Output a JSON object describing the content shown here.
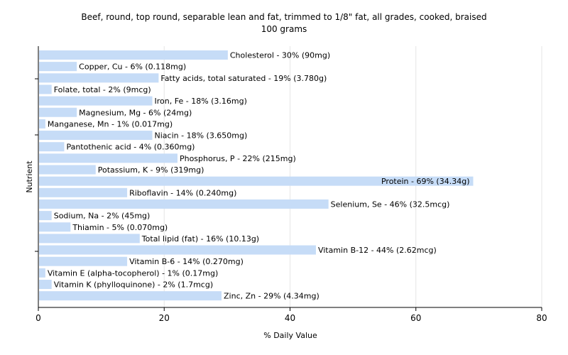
{
  "chart_data": {
    "type": "bar",
    "orientation": "horizontal",
    "title": "Beef, round, top round, separable lean and fat, trimmed to 1/8\" fat, all grades, cooked, braised",
    "subtitle": "100 grams",
    "xlabel": "% Daily Value",
    "ylabel": "Nutrient",
    "xlim": [
      0,
      80
    ],
    "xticks": [
      0,
      20,
      40,
      60,
      80
    ],
    "grid": true,
    "bar_color": "#c6dcf7",
    "categories": [
      "Cholesterol",
      "Copper, Cu",
      "Fatty acids, total saturated",
      "Folate, total",
      "Iron, Fe",
      "Magnesium, Mg",
      "Manganese, Mn",
      "Niacin",
      "Pantothenic acid",
      "Phosphorus, P",
      "Potassium, K",
      "Protein",
      "Riboflavin",
      "Selenium, Se",
      "Sodium, Na",
      "Thiamin",
      "Total lipid (fat)",
      "Vitamin B-12",
      "Vitamin B-6",
      "Vitamin E (alpha-tocopherol)",
      "Vitamin K (phylloquinone)",
      "Zinc, Zn"
    ],
    "values": [
      30,
      6,
      19,
      2,
      18,
      6,
      1,
      18,
      4,
      22,
      9,
      69,
      14,
      46,
      2,
      5,
      16,
      44,
      14,
      1,
      2,
      29
    ],
    "labels": [
      "Cholesterol - 30% (90mg)",
      "Copper, Cu - 6% (0.118mg)",
      "Fatty acids, total saturated - 19% (3.780g)",
      "Folate, total - 2% (9mcg)",
      "Iron, Fe - 18% (3.16mg)",
      "Magnesium, Mg - 6% (24mg)",
      "Manganese, Mn - 1% (0.017mg)",
      "Niacin - 18% (3.650mg)",
      "Pantothenic acid - 4% (0.360mg)",
      "Phosphorus, P - 22% (215mg)",
      "Potassium, K - 9% (319mg)",
      "Protein - 69% (34.34g)",
      "Riboflavin - 14% (0.240mg)",
      "Selenium, Se - 46% (32.5mcg)",
      "Sodium, Na - 2% (45mg)",
      "Thiamin - 5% (0.070mg)",
      "Total lipid (fat) - 16% (10.13g)",
      "Vitamin B-12 - 44% (2.62mcg)",
      "Vitamin B-6 - 14% (0.270mg)",
      "Vitamin E (alpha-tocopherol) - 1% (0.17mg)",
      "Vitamin K (phylloquinone) - 2% (1.7mcg)",
      "Zinc, Zn - 29% (4.34mg)"
    ]
  }
}
